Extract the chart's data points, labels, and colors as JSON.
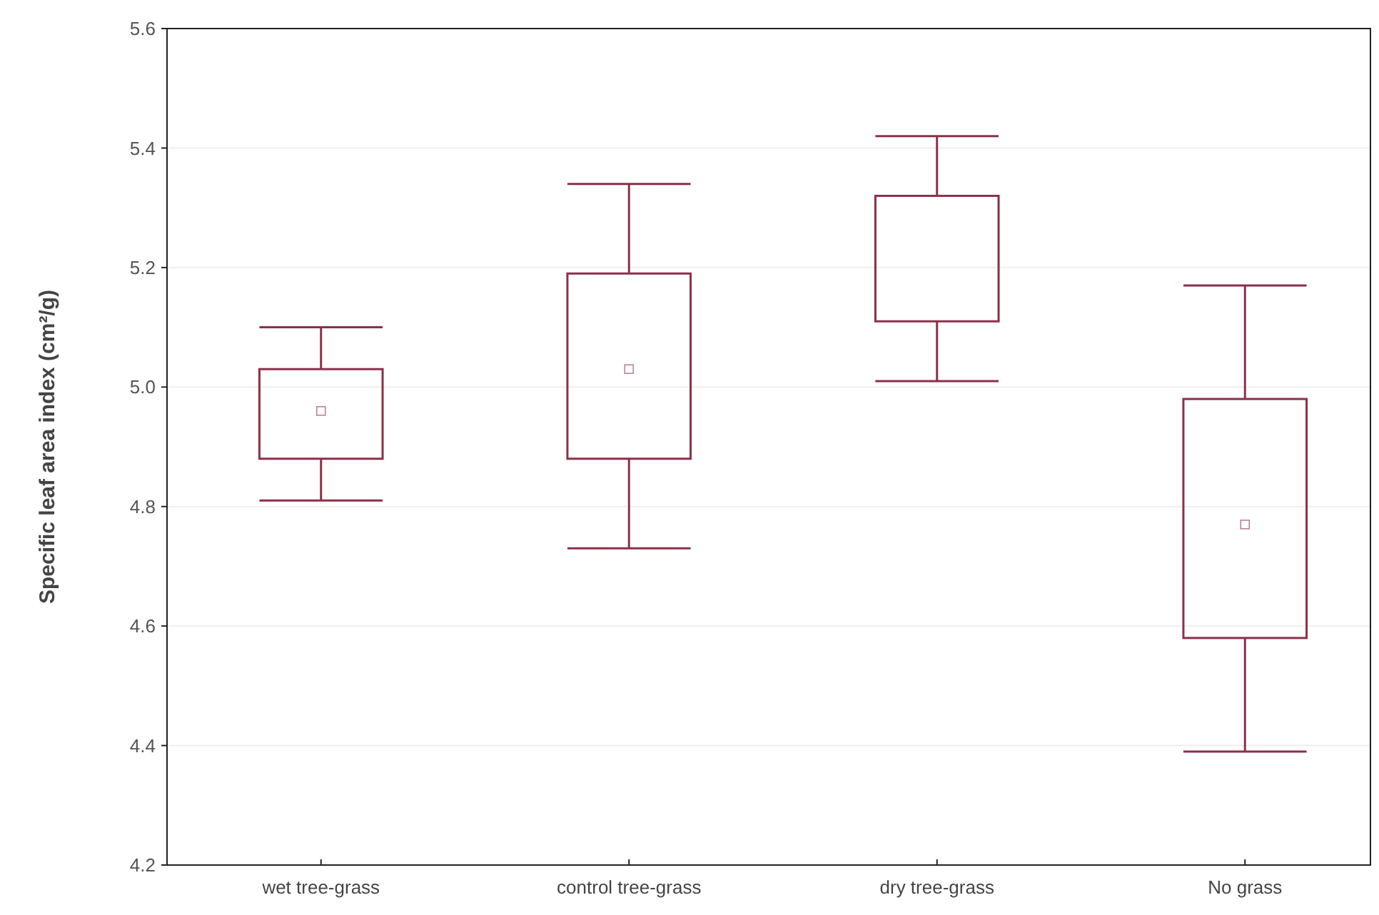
{
  "chart_data": {
    "type": "box",
    "ylabel": "Specific leaf area index (cm²/g)",
    "categories": [
      "wet tree-grass",
      "control tree-grass",
      "dry tree-grass",
      "No grass"
    ],
    "boxes": [
      {
        "low": 4.81,
        "q1": 4.88,
        "median": 4.96,
        "q3": 5.03,
        "high": 5.1
      },
      {
        "low": 4.73,
        "q1": 4.88,
        "median": 5.03,
        "q3": 5.19,
        "high": 5.34
      },
      {
        "low": 5.01,
        "q1": 5.11,
        "q3": 5.32,
        "high": 5.42
      },
      {
        "low": 4.39,
        "q1": 4.58,
        "median": 4.77,
        "q3": 4.98,
        "high": 5.17
      }
    ],
    "color": "#8b3048",
    "ylim": [
      4.2,
      5.6
    ],
    "yticks": [
      {
        "value": 4.2,
        "label": "4.2"
      },
      {
        "value": 4.4,
        "label": "4.4"
      },
      {
        "value": 4.6,
        "label": "4.6"
      },
      {
        "value": 4.8,
        "label": "4.8"
      },
      {
        "value": 5.0,
        "label": "5.0"
      },
      {
        "value": 5.2,
        "label": "5.2"
      },
      {
        "value": 5.4,
        "label": "5.4"
      },
      {
        "value": 5.6,
        "label": "5.6"
      }
    ],
    "grid": "y"
  }
}
